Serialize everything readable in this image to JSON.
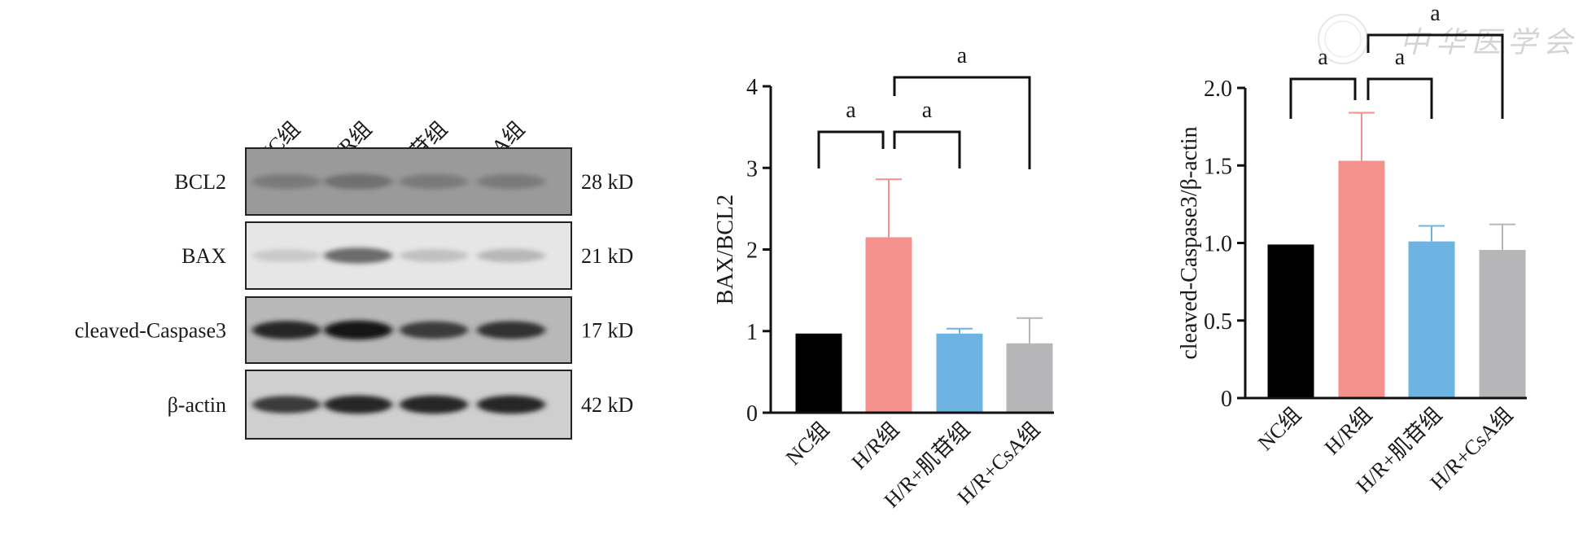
{
  "blot": {
    "lanes": [
      "NC组",
      "H/R组",
      "H/R+肌苷组",
      "H/R+CsA组"
    ],
    "rows": [
      {
        "protein": "BCL2",
        "size": "28 kD",
        "intensity": [
          0.45,
          0.5,
          0.45,
          0.45
        ],
        "background": "#9a9a9a"
      },
      {
        "protein": "BAX",
        "size": "21 kD",
        "intensity": [
          0.15,
          0.55,
          0.2,
          0.25
        ],
        "background": "#e6e6e6"
      },
      {
        "protein": "cleaved-Caspase3",
        "size": "17 kD",
        "intensity": [
          0.85,
          0.95,
          0.75,
          0.8
        ],
        "background": "#b8b8b8"
      },
      {
        "protein": "β-actin",
        "size": "42 kD",
        "intensity": [
          0.75,
          0.85,
          0.85,
          0.85
        ],
        "background": "#cfcfcf"
      }
    ]
  },
  "watermark": "中华医学会",
  "chart_data": [
    {
      "type": "bar",
      "categories": [
        "NC组",
        "H/R组",
        "H/R+肌苷组",
        "H/R+CsA组"
      ],
      "values": [
        0.97,
        2.15,
        0.97,
        0.85
      ],
      "error": [
        0,
        0.71,
        0.06,
        0.31
      ],
      "colors": [
        "#000000",
        "#f4918c",
        "#6db4e2",
        "#b6b6b9"
      ],
      "ylabel": "BAX/BCL2",
      "ylim": [
        0,
        4
      ],
      "yticks": [
        "0",
        "1",
        "2",
        "3",
        "4"
      ],
      "significance": [
        {
          "from": 0,
          "to": 1,
          "label": "a"
        },
        {
          "from": 1,
          "to": 2,
          "label": "a"
        },
        {
          "from": 1,
          "to": 3,
          "label": "a"
        }
      ]
    },
    {
      "type": "bar",
      "categories": [
        "NC组",
        "H/R组",
        "H/R+肌苷组",
        "H/R+CsA组"
      ],
      "values": [
        0.99,
        1.53,
        1.01,
        0.955
      ],
      "error": [
        0,
        0.31,
        0.1,
        0.165
      ],
      "colors": [
        "#000000",
        "#f4918c",
        "#6db4e2",
        "#b6b6b9"
      ],
      "ylabel": "cleaved-Caspase3/β-actin",
      "ylim": [
        0,
        2
      ],
      "yticks": [
        "0",
        "0.5",
        "1.0",
        "1.5",
        "2.0"
      ],
      "significance": [
        {
          "from": 0,
          "to": 1,
          "label": "a"
        },
        {
          "from": 1,
          "to": 2,
          "label": "a"
        },
        {
          "from": 1,
          "to": 3,
          "label": "a"
        }
      ]
    }
  ]
}
